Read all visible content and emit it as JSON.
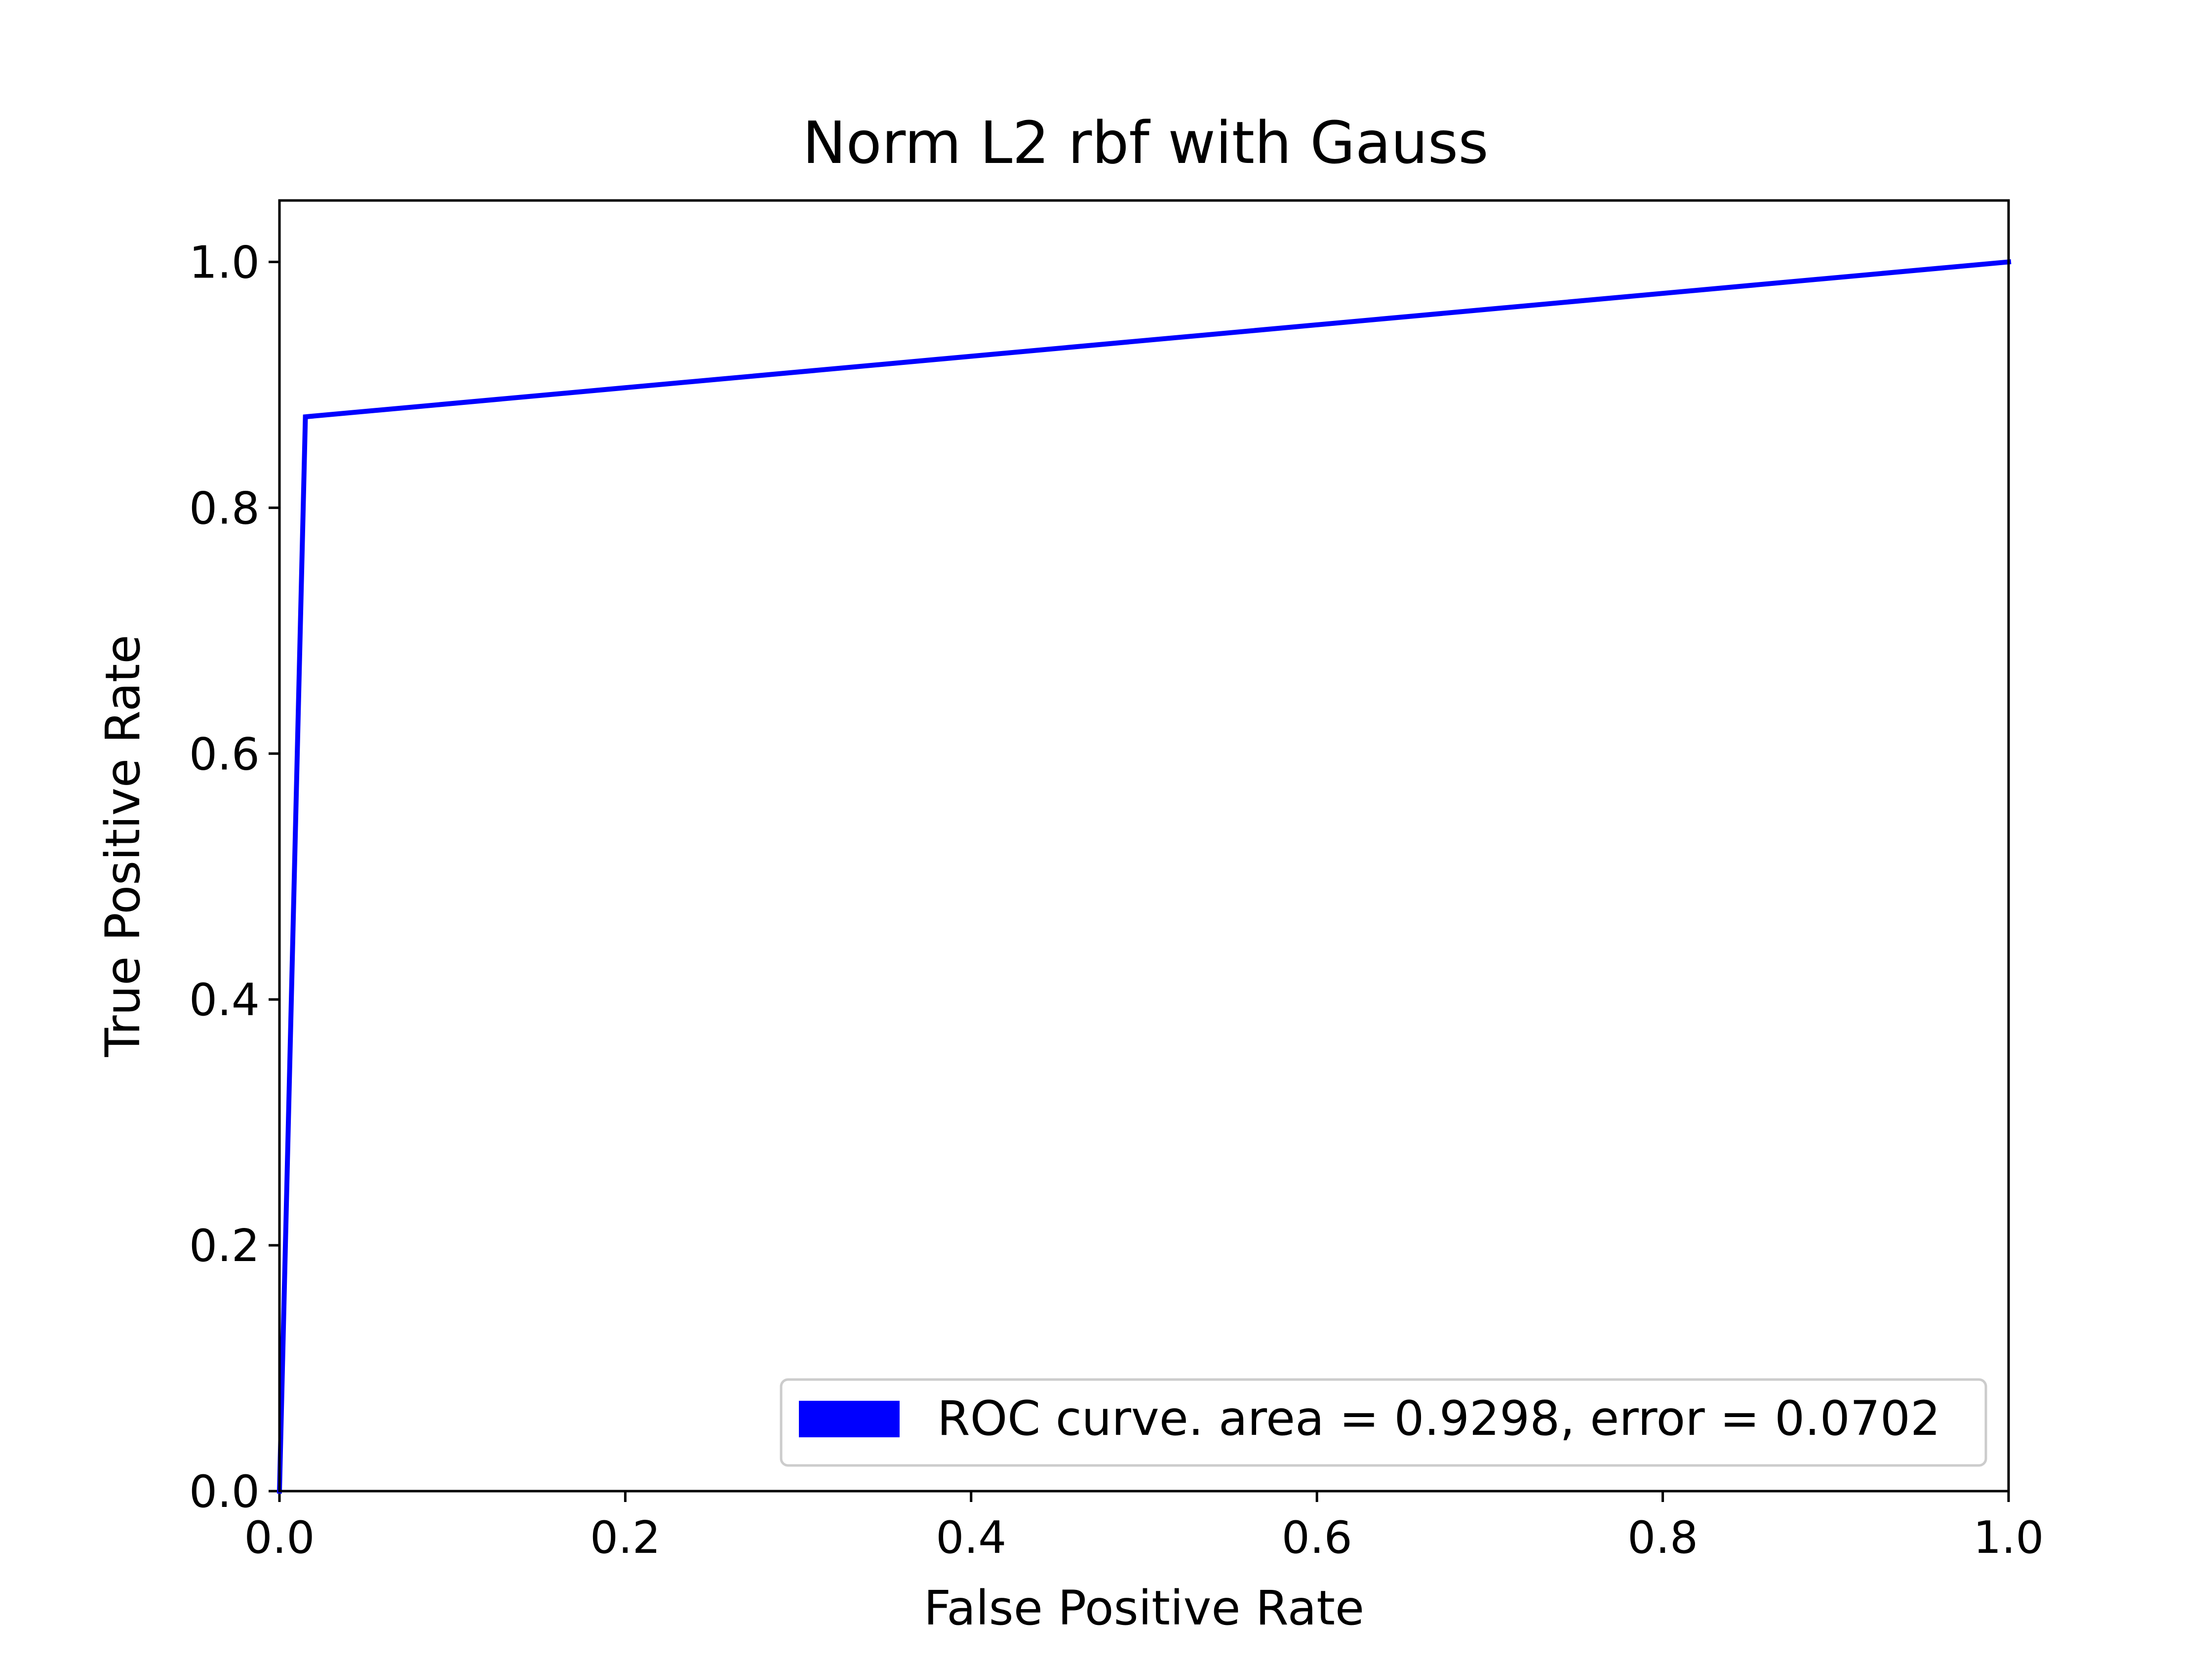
{
  "chart_data": {
    "type": "line",
    "title": "Norm L2 rbf with Gauss",
    "xlabel": "False Positive Rate",
    "ylabel": "True Positive Rate",
    "xlim": [
      0.0,
      1.0
    ],
    "ylim": [
      0.0,
      1.05
    ],
    "xticks": [
      0.0,
      0.2,
      0.4,
      0.6,
      0.8,
      1.0
    ],
    "yticks": [
      0.0,
      0.2,
      0.4,
      0.6,
      0.8,
      1.0
    ],
    "xtick_labels": [
      "0.0",
      "0.2",
      "0.4",
      "0.6",
      "0.8",
      "1.0"
    ],
    "ytick_labels": [
      "0.0",
      "0.2",
      "0.4",
      "0.6",
      "0.8",
      "1.0"
    ],
    "grid": false,
    "legend_position": "lower-right",
    "series": [
      {
        "name": "ROC curve. area = 0.9298, error = 0.0702",
        "color": "#0000ff",
        "x": [
          0.0,
          0.015,
          1.0
        ],
        "y": [
          0.0,
          0.874,
          1.0
        ]
      }
    ]
  }
}
